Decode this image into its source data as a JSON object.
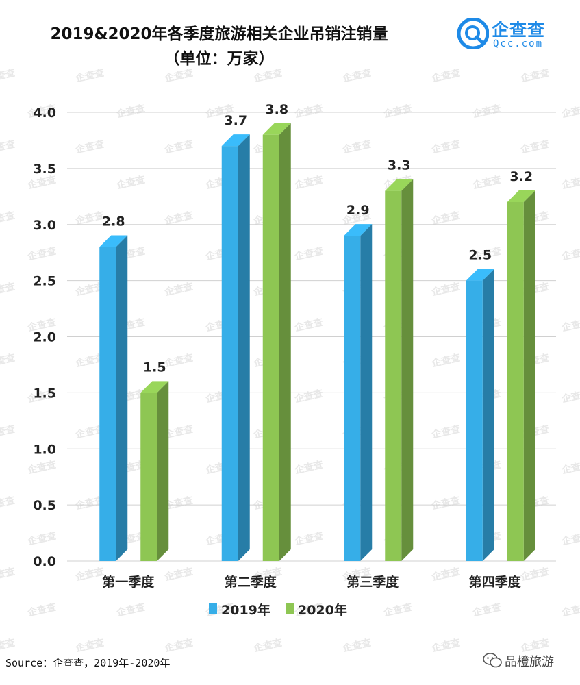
{
  "header": {
    "title": "2019&2020年各季度旅游相关企业吊销注销量",
    "subtitle": "（单位：万家）"
  },
  "logo": {
    "name": "企查查",
    "domain": "Qcc.com",
    "color": "#1e8ae7",
    "icon": "qcc-logo-icon"
  },
  "watermark": "企查查",
  "source": "Source：企查查，2019年-2020年",
  "wechat": {
    "icon": "wechat-icon",
    "label": "品橙旅游"
  },
  "chart_data": {
    "type": "bar",
    "categories": [
      "第一季度",
      "第二季度",
      "第三季度",
      "第四季度"
    ],
    "series": [
      {
        "name": "2019年",
        "values": [
          2.8,
          3.7,
          2.9,
          2.5
        ],
        "color": "#36aee8",
        "labels": [
          "2.8",
          "3.7",
          "2.9",
          "2.5"
        ]
      },
      {
        "name": "2020年",
        "values": [
          1.5,
          3.8,
          3.3,
          3.2
        ],
        "color": "#8ec653",
        "labels": [
          "1.5",
          "3.8",
          "3.3",
          "3.2"
        ]
      }
    ],
    "ylim": [
      0,
      4.0
    ],
    "yticks": [
      "0.0",
      "0.5",
      "1.0",
      "1.5",
      "2.0",
      "2.5",
      "3.0",
      "3.5",
      "4.0"
    ],
    "grid": true,
    "style": "3d",
    "legend": "bottom-center"
  }
}
